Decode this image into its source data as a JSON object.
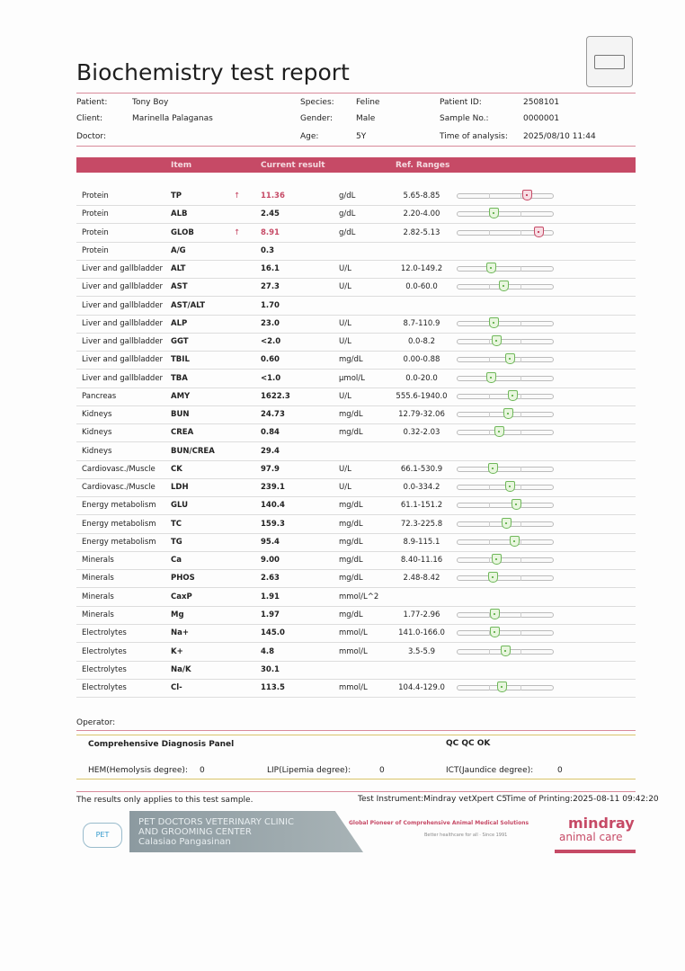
{
  "title": "Biochemistry test report",
  "patient_info": {
    "patient_label": "Patient:",
    "patient": "Tony Boy",
    "client_label": "Client:",
    "client": "Marinella Palaganas",
    "doctor_label": "Doctor:",
    "species_label": "Species:",
    "species": "Feline",
    "gender_label": "Gender:",
    "gender": "Male",
    "age_label": "Age:",
    "age": "5Y",
    "patient_id_label": "Patient ID:",
    "patient_id": "2508101",
    "sample_label": "Sample No.:",
    "sample": "0000001",
    "time_label": "Time of analysis:",
    "time": "2025/08/10 11:44"
  },
  "table": {
    "headers": {
      "item": "Item",
      "result": "Current result",
      "ref": "Ref. Ranges"
    },
    "rows": [
      {
        "cat": "Protein",
        "item": "TP",
        "flag": "↑",
        "result": "11.36",
        "unit": "g/dL",
        "ref": "5.65-8.85",
        "level": 0.73,
        "high": true
      },
      {
        "cat": "Protein",
        "item": "ALB",
        "flag": "",
        "result": "2.45",
        "unit": "g/dL",
        "ref": "2.20-4.00",
        "level": 0.38
      },
      {
        "cat": "Protein",
        "item": "GLOB",
        "flag": "↑",
        "result": "8.91",
        "unit": "g/dL",
        "ref": "2.82-5.13",
        "level": 0.85,
        "high": true
      },
      {
        "cat": "Protein",
        "item": "A/G",
        "flag": "",
        "result": "0.3",
        "unit": "",
        "ref": ""
      },
      {
        "cat": "Liver and gallbladder",
        "item": "ALT",
        "flag": "",
        "result": "16.1",
        "unit": "U/L",
        "ref": "12.0-149.2",
        "level": 0.35
      },
      {
        "cat": "Liver and gallbladder",
        "item": "AST",
        "flag": "",
        "result": "27.3",
        "unit": "U/L",
        "ref": "0.0-60.0",
        "level": 0.48
      },
      {
        "cat": "Liver and gallbladder",
        "item": "AST/ALT",
        "flag": "",
        "result": "1.70",
        "unit": "",
        "ref": ""
      },
      {
        "cat": "Liver and gallbladder",
        "item": "ALP",
        "flag": "",
        "result": "23.0",
        "unit": "U/L",
        "ref": "8.7-110.9",
        "level": 0.38
      },
      {
        "cat": "Liver and gallbladder",
        "item": "GGT",
        "flag": "",
        "result": "<2.0",
        "unit": "U/L",
        "ref": "0.0-8.2",
        "level": 0.41
      },
      {
        "cat": "Liver and gallbladder",
        "item": "TBIL",
        "flag": "",
        "result": "0.60",
        "unit": "mg/dL",
        "ref": "0.00-0.88",
        "level": 0.55
      },
      {
        "cat": "Liver and gallbladder",
        "item": "TBA",
        "flag": "",
        "result": "<1.0",
        "unit": "µmol/L",
        "ref": "0.0-20.0",
        "level": 0.35
      },
      {
        "cat": "Pancreas",
        "item": "AMY",
        "flag": "",
        "result": "1622.3",
        "unit": "U/L",
        "ref": "555.6-1940.0",
        "level": 0.58
      },
      {
        "cat": "Kidneys",
        "item": "BUN",
        "flag": "",
        "result": "24.73",
        "unit": "mg/dL",
        "ref": "12.79-32.06",
        "level": 0.53
      },
      {
        "cat": "Kidneys",
        "item": "CREA",
        "flag": "",
        "result": "0.84",
        "unit": "mg/dL",
        "ref": "0.32-2.03",
        "level": 0.43
      },
      {
        "cat": "Kidneys",
        "item": "BUN/CREA",
        "flag": "",
        "result": "29.4",
        "unit": "",
        "ref": ""
      },
      {
        "cat": "Cardiovasc./Muscle",
        "item": "CK",
        "flag": "",
        "result": "97.9",
        "unit": "U/L",
        "ref": "66.1-530.9",
        "level": 0.37
      },
      {
        "cat": "Cardiovasc./Muscle",
        "item": "LDH",
        "flag": "",
        "result": "239.1",
        "unit": "U/L",
        "ref": "0.0-334.2",
        "level": 0.55
      },
      {
        "cat": "Energy metabolism",
        "item": "GLU",
        "flag": "",
        "result": "140.4",
        "unit": "mg/dL",
        "ref": "61.1-151.2",
        "level": 0.61
      },
      {
        "cat": "Energy metabolism",
        "item": "TC",
        "flag": "",
        "result": "159.3",
        "unit": "mg/dL",
        "ref": "72.3-225.8",
        "level": 0.51
      },
      {
        "cat": "Energy metabolism",
        "item": "TG",
        "flag": "",
        "result": "95.4",
        "unit": "mg/dL",
        "ref": "8.9-115.1",
        "level": 0.59
      },
      {
        "cat": "Minerals",
        "item": "Ca",
        "flag": "",
        "result": "9.00",
        "unit": "mg/dL",
        "ref": "8.40-11.16",
        "level": 0.41
      },
      {
        "cat": "Minerals",
        "item": "PHOS",
        "flag": "",
        "result": "2.63",
        "unit": "mg/dL",
        "ref": "2.48-8.42",
        "level": 0.37
      },
      {
        "cat": "Minerals",
        "item": "CaxP",
        "flag": "",
        "result": "1.91",
        "unit": "mmol/L^2",
        "ref": ""
      },
      {
        "cat": "Minerals",
        "item": "Mg",
        "flag": "",
        "result": "1.97",
        "unit": "mg/dL",
        "ref": "1.77-2.96",
        "level": 0.39
      },
      {
        "cat": "Electrolytes",
        "item": "Na+",
        "flag": "",
        "result": "145.0",
        "unit": "mmol/L",
        "ref": "141.0-166.0",
        "level": 0.39
      },
      {
        "cat": "Electrolytes",
        "item": "K+",
        "flag": "",
        "result": "4.8",
        "unit": "mmol/L",
        "ref": "3.5-5.9",
        "level": 0.5
      },
      {
        "cat": "Electrolytes",
        "item": "Na/K",
        "flag": "",
        "result": "30.1",
        "unit": "",
        "ref": ""
      },
      {
        "cat": "Electrolytes",
        "item": "Cl-",
        "flag": "",
        "result": "113.5",
        "unit": "mmol/L",
        "ref": "104.4-129.0",
        "level": 0.46
      }
    ]
  },
  "footer": {
    "operator": "Operator:",
    "panel": "Comprehensive Diagnosis Panel",
    "qc": "QC QC OK",
    "hem_label": "HEM(Hemolysis degree):",
    "hem": "0",
    "lip_label": "LIP(Lipemia degree):",
    "lip": "0",
    "ict_label": "ICT(Jaundice degree):",
    "ict": "0",
    "note": "The results only applies to this test sample.",
    "instrument": "Test Instrument:Mindray vetXpert C5",
    "printing": "Time of Printing:2025-08-11 09:42:20"
  },
  "banner": {
    "clinic_line1": "PET DOCTORS VETERINARY CLINIC",
    "clinic_line2": "AND GROOMING CENTER",
    "clinic_line3": "Calasiao Pangasinan",
    "slogan": "Global Pioneer of Comprehensive Animal Medical Solutions",
    "tagline": "Better healthcare for all  ·  Since 1991",
    "brand1": "mindray",
    "brand2": "animal care",
    "pet_logo": "PET Doctor",
    "accent": "#c64a66"
  }
}
